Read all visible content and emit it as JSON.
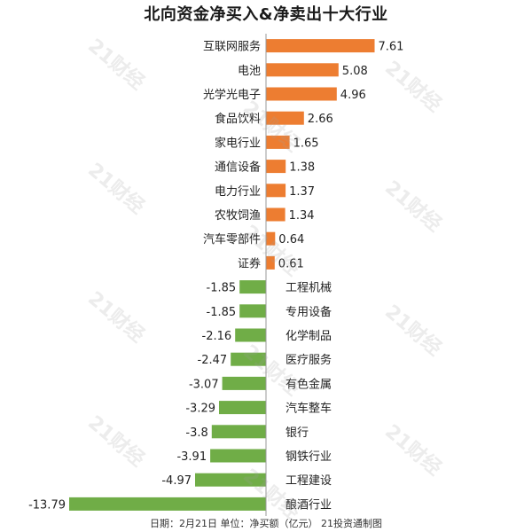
{
  "chart_data": {
    "type": "bar",
    "orientation": "horizontal",
    "title": "北向资金净买入&净卖出十大行业",
    "footnote": "日期：2月21日 单位：净买额（亿元） 21投资通制图",
    "categories": [
      "互联网服务",
      "电池",
      "光学光电子",
      "食品饮料",
      "家电行业",
      "通信设备",
      "电力行业",
      "农牧饲渔",
      "汽车零部件",
      "证券",
      "工程机械",
      "专用设备",
      "化学制品",
      "医疗服务",
      "有色金属",
      "汽车整车",
      "银行",
      "钢铁行业",
      "工程建设",
      "酿酒行业"
    ],
    "values": [
      7.61,
      5.08,
      4.96,
      2.66,
      1.65,
      1.38,
      1.37,
      1.34,
      0.64,
      0.61,
      -1.85,
      -1.85,
      -2.16,
      -2.47,
      -3.07,
      -3.29,
      -3.8,
      -3.91,
      -4.97,
      -13.79
    ],
    "value_labels": [
      "7.61",
      "5.08",
      "4.96",
      "2.66",
      "1.65",
      "1.38",
      "1.37",
      "1.34",
      "0.64",
      "0.61",
      "-1.85",
      "-1.85",
      "-2.16",
      "-2.47",
      "-3.07",
      "-3.29",
      "-3.8",
      "-3.91",
      "-4.97",
      "-13.79"
    ],
    "xlim": [
      -13.79,
      7.61
    ],
    "grid": false,
    "colors": {
      "positive": "#ED7D31",
      "negative": "#70AD47",
      "axis": "#999999"
    }
  },
  "watermark": "21财经"
}
